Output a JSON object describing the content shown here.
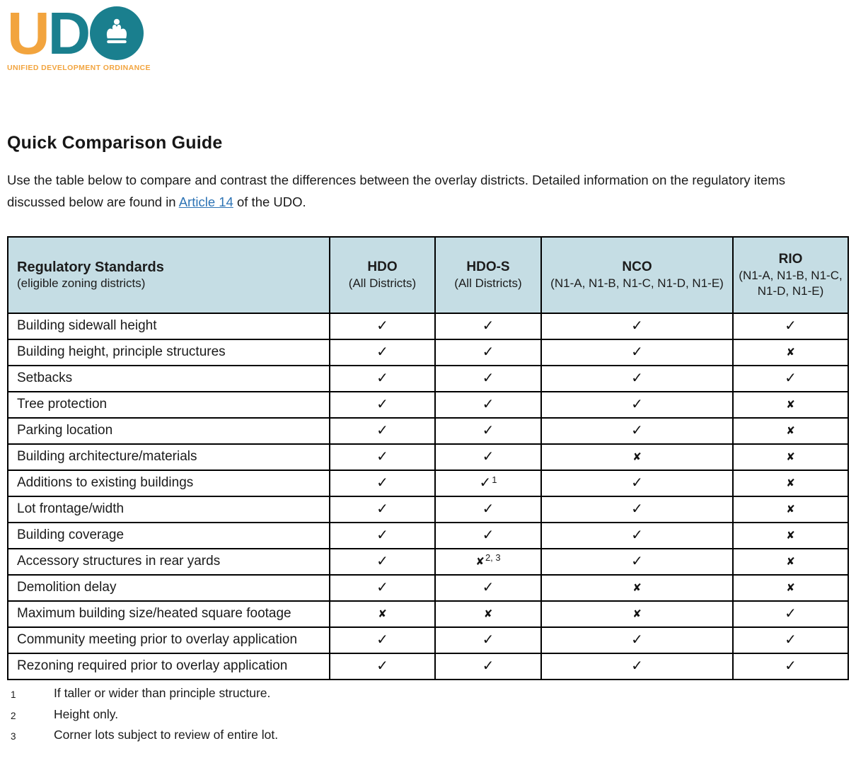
{
  "logo": {
    "letter_u": "U",
    "letter_d": "D",
    "tagline": "UNIFIED DEVELOPMENT ORDINANCE",
    "teal": "#1A7F8E",
    "orange": "#F2A43E"
  },
  "title": "Quick Comparison Guide",
  "intro": {
    "before_link": "Use the table below to compare and contrast the differences between the overlay districts. Detailed information on the regulatory items discussed below are found in ",
    "link": "Article 14",
    "after_link": " of the UDO."
  },
  "table": {
    "header_bg": "#C5DDE4",
    "header": [
      {
        "title": "Regulatory Standards",
        "subtitle": "(eligible zoning districts)"
      },
      {
        "title": "HDO",
        "subtitle": "(All Districts)"
      },
      {
        "title": "HDO-S",
        "subtitle": "(All Districts)"
      },
      {
        "title": "NCO",
        "subtitle": "(N1-A, N1-B, N1-C, N1-D, N1-E)"
      },
      {
        "title": "RIO",
        "subtitle": "(N1-A, N1-B, N1-C, N1-D, N1-E)"
      }
    ],
    "marks": {
      "check": "✓",
      "x": "✘"
    },
    "rows": [
      {
        "label": "Building sidewall height",
        "cells": [
          {
            "mark": "check",
            "sup": ""
          },
          {
            "mark": "check",
            "sup": ""
          },
          {
            "mark": "check",
            "sup": ""
          },
          {
            "mark": "check",
            "sup": ""
          }
        ]
      },
      {
        "label": "Building height, principle structures",
        "cells": [
          {
            "mark": "check",
            "sup": ""
          },
          {
            "mark": "check",
            "sup": ""
          },
          {
            "mark": "check",
            "sup": ""
          },
          {
            "mark": "x",
            "sup": ""
          }
        ]
      },
      {
        "label": "Setbacks",
        "cells": [
          {
            "mark": "check",
            "sup": ""
          },
          {
            "mark": "check",
            "sup": ""
          },
          {
            "mark": "check",
            "sup": ""
          },
          {
            "mark": "check",
            "sup": ""
          }
        ]
      },
      {
        "label": "Tree protection",
        "cells": [
          {
            "mark": "check",
            "sup": ""
          },
          {
            "mark": "check",
            "sup": ""
          },
          {
            "mark": "check",
            "sup": ""
          },
          {
            "mark": "x",
            "sup": ""
          }
        ]
      },
      {
        "label": "Parking location",
        "cells": [
          {
            "mark": "check",
            "sup": ""
          },
          {
            "mark": "check",
            "sup": ""
          },
          {
            "mark": "check",
            "sup": ""
          },
          {
            "mark": "x",
            "sup": ""
          }
        ]
      },
      {
        "label": "Building architecture/materials",
        "cells": [
          {
            "mark": "check",
            "sup": ""
          },
          {
            "mark": "check",
            "sup": ""
          },
          {
            "mark": "x",
            "sup": ""
          },
          {
            "mark": "x",
            "sup": ""
          }
        ]
      },
      {
        "label": "Additions to existing buildings",
        "cells": [
          {
            "mark": "check",
            "sup": ""
          },
          {
            "mark": "check",
            "sup": "1"
          },
          {
            "mark": "check",
            "sup": ""
          },
          {
            "mark": "x",
            "sup": ""
          }
        ]
      },
      {
        "label": "Lot frontage/width",
        "cells": [
          {
            "mark": "check",
            "sup": ""
          },
          {
            "mark": "check",
            "sup": ""
          },
          {
            "mark": "check",
            "sup": ""
          },
          {
            "mark": "x",
            "sup": ""
          }
        ]
      },
      {
        "label": "Building coverage",
        "cells": [
          {
            "mark": "check",
            "sup": ""
          },
          {
            "mark": "check",
            "sup": ""
          },
          {
            "mark": "check",
            "sup": ""
          },
          {
            "mark": "x",
            "sup": ""
          }
        ]
      },
      {
        "label": "Accessory structures in rear yards",
        "cells": [
          {
            "mark": "check",
            "sup": ""
          },
          {
            "mark": "x",
            "sup": "2, 3"
          },
          {
            "mark": "check",
            "sup": ""
          },
          {
            "mark": "x",
            "sup": ""
          }
        ]
      },
      {
        "label": "Demolition delay",
        "cells": [
          {
            "mark": "check",
            "sup": ""
          },
          {
            "mark": "check",
            "sup": ""
          },
          {
            "mark": "x",
            "sup": ""
          },
          {
            "mark": "x",
            "sup": ""
          }
        ]
      },
      {
        "label": "Maximum building size/heated square footage",
        "cells": [
          {
            "mark": "x",
            "sup": ""
          },
          {
            "mark": "x",
            "sup": ""
          },
          {
            "mark": "x",
            "sup": ""
          },
          {
            "mark": "check",
            "sup": ""
          }
        ]
      },
      {
        "label": "Community meeting prior to overlay application",
        "cells": [
          {
            "mark": "check",
            "sup": ""
          },
          {
            "mark": "check",
            "sup": ""
          },
          {
            "mark": "check",
            "sup": ""
          },
          {
            "mark": "check",
            "sup": ""
          }
        ]
      },
      {
        "label": "Rezoning required prior to overlay application",
        "cells": [
          {
            "mark": "check",
            "sup": ""
          },
          {
            "mark": "check",
            "sup": ""
          },
          {
            "mark": "check",
            "sup": ""
          },
          {
            "mark": "check",
            "sup": ""
          }
        ]
      }
    ]
  },
  "footnotes": [
    {
      "num": "1",
      "text": "If taller or wider than principle structure."
    },
    {
      "num": "2",
      "text": "Height only."
    },
    {
      "num": "3",
      "text": "Corner lots subject to review of entire lot."
    }
  ]
}
